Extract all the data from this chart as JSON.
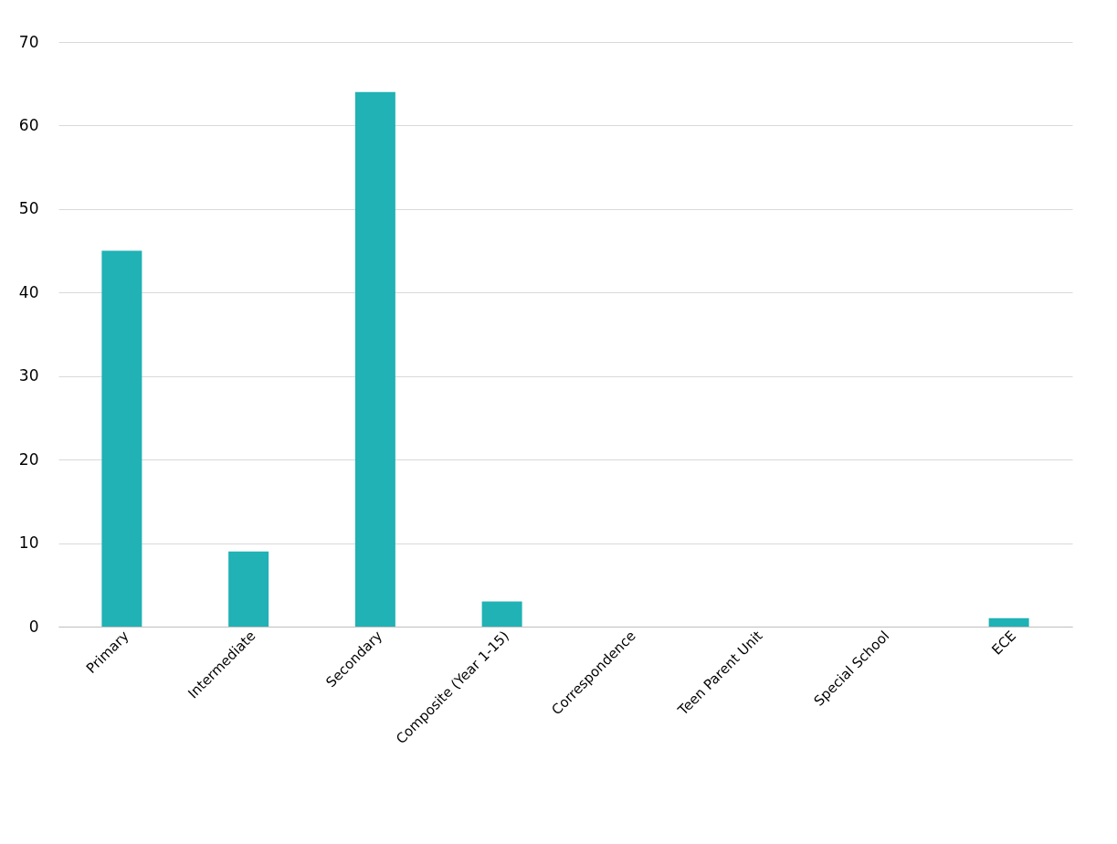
{
  "chart_data": {
    "type": "bar",
    "categories": [
      "Primary",
      "Intermediate",
      "Secondary",
      "Composite (Year 1-15)",
      "Correspondence",
      "Teen Parent Unit",
      "Special School",
      "ECE"
    ],
    "values": [
      45,
      9,
      64,
      3,
      0,
      0,
      0,
      1
    ],
    "color": "#20b2b5",
    "ylim": [
      0,
      70
    ],
    "yticks": [
      0,
      10,
      20,
      30,
      40,
      50,
      60,
      70
    ],
    "grid": "y"
  }
}
